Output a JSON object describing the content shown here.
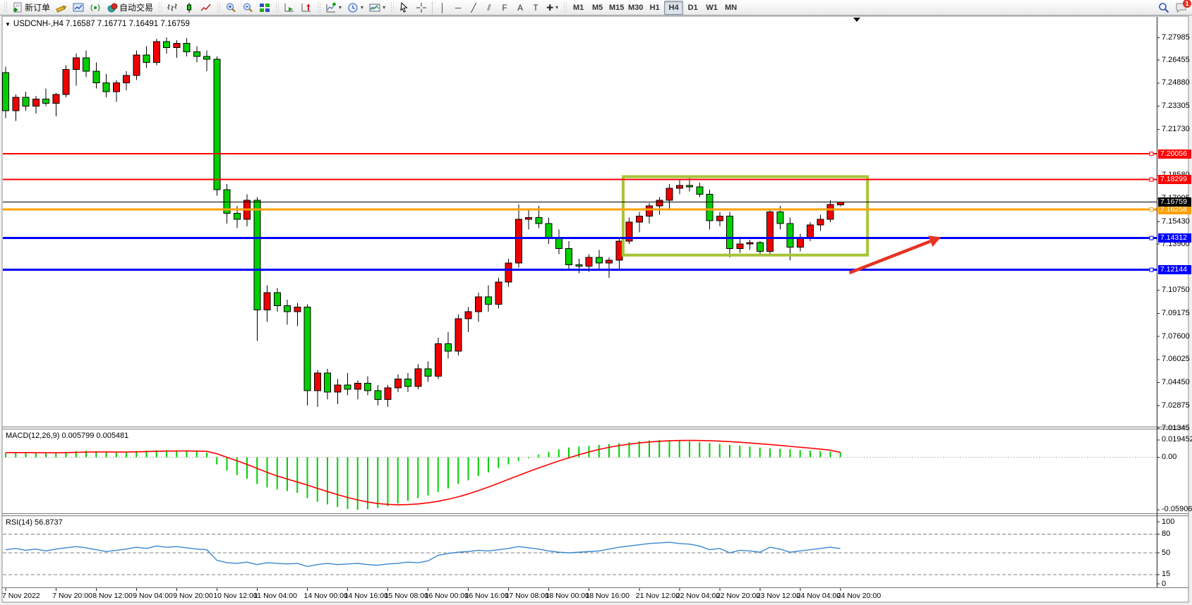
{
  "toolbar": {
    "items": [
      {
        "type": "handle"
      },
      {
        "type": "btn",
        "id": "new-order",
        "icon": "doc-plus",
        "label": "新订单"
      },
      {
        "type": "btn",
        "id": "crayon",
        "icon": "crayon"
      },
      {
        "type": "btn",
        "id": "chart-profiles",
        "icon": "charts"
      },
      {
        "type": "btn",
        "id": "signals",
        "icon": "signal"
      },
      {
        "type": "btn",
        "id": "auto-trading",
        "icon": "autotrade",
        "label": "自动交易"
      },
      {
        "type": "handle"
      },
      {
        "type": "btn",
        "id": "bar-chart",
        "icon": "bars"
      },
      {
        "type": "btn",
        "id": "candlestick-chart",
        "icon": "candle"
      },
      {
        "type": "btn",
        "id": "line-chart",
        "icon": "line"
      },
      {
        "type": "handle"
      },
      {
        "type": "btn",
        "id": "zoom-in",
        "icon": "zoom-in"
      },
      {
        "type": "btn",
        "id": "zoom-out",
        "icon": "zoom-out"
      },
      {
        "type": "btn",
        "id": "tile-windows",
        "icon": "tile"
      },
      {
        "type": "handle"
      },
      {
        "type": "btn",
        "id": "auto-scroll",
        "icon": "autoscroll"
      },
      {
        "type": "btn",
        "id": "chart-shift",
        "icon": "shift"
      },
      {
        "type": "handle"
      },
      {
        "type": "btn",
        "id": "indicators",
        "icon": "ind",
        "dropdown": true
      },
      {
        "type": "btn",
        "id": "periods",
        "icon": "clock",
        "dropdown": true
      },
      {
        "type": "btn",
        "id": "templates",
        "icon": "tpl",
        "dropdown": true
      },
      {
        "type": "handle"
      },
      {
        "type": "btn",
        "id": "cursor",
        "icon": "cursor"
      },
      {
        "type": "btn",
        "id": "crosshair",
        "icon": "cross"
      },
      {
        "type": "sep"
      },
      {
        "type": "btn",
        "id": "vertical-line",
        "glyph": "│"
      },
      {
        "type": "btn",
        "id": "horizontal-line",
        "glyph": "─"
      },
      {
        "type": "btn",
        "id": "trendline",
        "glyph": "╱"
      },
      {
        "type": "btn",
        "id": "equidistant-channel",
        "glyph": "⫽"
      },
      {
        "type": "btn",
        "id": "fibonacci",
        "glyph": "F"
      },
      {
        "type": "btn",
        "id": "text",
        "glyph": "A"
      },
      {
        "type": "btn",
        "id": "text-label",
        "glyph": "T"
      },
      {
        "type": "btn",
        "id": "arrows",
        "glyph": "✚",
        "dropdown": true
      },
      {
        "type": "handle"
      },
      {
        "type": "tf",
        "id": "tf-m1",
        "label": "M1"
      },
      {
        "type": "tf",
        "id": "tf-m5",
        "label": "M5"
      },
      {
        "type": "tf",
        "id": "tf-m15",
        "label": "M15"
      },
      {
        "type": "tf",
        "id": "tf-m30",
        "label": "M30"
      },
      {
        "type": "tf",
        "id": "tf-h1",
        "label": "H1"
      },
      {
        "type": "tf",
        "id": "tf-h4",
        "label": "H4",
        "active": true
      },
      {
        "type": "tf",
        "id": "tf-d1",
        "label": "D1"
      },
      {
        "type": "tf",
        "id": "tf-w1",
        "label": "W1"
      },
      {
        "type": "tf",
        "id": "tf-mn",
        "label": "MN"
      },
      {
        "type": "spacer"
      },
      {
        "type": "btn",
        "id": "search",
        "icon": "search"
      },
      {
        "type": "btn",
        "id": "notifications",
        "icon": "chat",
        "badge": "1"
      }
    ]
  },
  "chart": {
    "symbol": "USDCNH-",
    "period": "H4",
    "title_text": "USDCNH-,H4  7.16587 7.16771 7.16491 7.16759",
    "ohlc": {
      "open": "7.16587",
      "high": "7.16771",
      "low": "7.16491",
      "close": "7.16759"
    }
  },
  "indicators": {
    "macd": {
      "label": "MACD(12,26,9) 0.005799 0.005481",
      "axis_ticks": [
        {
          "text": "0.019452",
          "value": 0.019452
        },
        {
          "text": "0.00",
          "value": 0
        },
        {
          "text": "-0.059068",
          "value": -0.059068
        }
      ]
    },
    "rsi": {
      "label": "RSI(14) 56.8737",
      "axis_ticks": [
        {
          "text": "100",
          "value": 100
        },
        {
          "text": "80",
          "value": 80
        },
        {
          "text": "50",
          "value": 50
        },
        {
          "text": "15",
          "value": 15
        },
        {
          "text": "0",
          "value": 0
        }
      ],
      "dashed_levels": [
        80,
        50,
        15
      ]
    }
  },
  "price_axis": {
    "ticks": [
      {
        "text": "7.27985",
        "price": 7.27985
      },
      {
        "text": "7.26455",
        "price": 7.26455
      },
      {
        "text": "7.24880",
        "price": 7.2488
      },
      {
        "text": "7.23305",
        "price": 7.23305
      },
      {
        "text": "7.21730",
        "price": 7.2173
      },
      {
        "text": "7.18580",
        "price": 7.1858
      },
      {
        "text": "7.17005",
        "price": 7.17005
      },
      {
        "text": "7.15430",
        "price": 7.1543
      },
      {
        "text": "7.13900",
        "price": 7.139
      },
      {
        "text": "7.10750",
        "price": 7.1075
      },
      {
        "text": "7.09175",
        "price": 7.09175
      },
      {
        "text": "7.07600",
        "price": 7.076
      },
      {
        "text": "7.06025",
        "price": 7.06025
      },
      {
        "text": "7.04450",
        "price": 7.0445
      },
      {
        "text": "7.02875",
        "price": 7.02875
      },
      {
        "text": "7.01345",
        "price": 7.01345
      }
    ],
    "line_badges": [
      {
        "text": "7.20056",
        "price": 7.20056,
        "color": "#ff0000"
      },
      {
        "text": "7.18299",
        "price": 7.18299,
        "color": "#ff0000"
      },
      {
        "text": "7.16258",
        "price": 7.16258,
        "color": "#ffa000"
      },
      {
        "text": "7.14312",
        "price": 7.14312,
        "color": "#0000ff"
      },
      {
        "text": "7.12144",
        "price": 7.12144,
        "color": "#0000ff"
      },
      {
        "text": "7.16759",
        "price": 7.16759,
        "color": "#000000"
      }
    ]
  },
  "time_axis": [
    {
      "bar": 0,
      "text": "7 Nov 2022"
    },
    {
      "bar": 5,
      "text": "7 Nov 20:00"
    },
    {
      "bar": 9,
      "text": "8 Nov 12:00"
    },
    {
      "bar": 13,
      "text": "9 Nov 04:00"
    },
    {
      "bar": 17,
      "text": "9 Nov 20:00"
    },
    {
      "bar": 21,
      "text": "10 Nov 12:00"
    },
    {
      "bar": 25,
      "text": "11 Nov 04:00"
    },
    {
      "bar": 30,
      "text": "14 Nov 00:00"
    },
    {
      "bar": 34,
      "text": "14 Nov 16:00"
    },
    {
      "bar": 38,
      "text": "15 Nov 08:00"
    },
    {
      "bar": 42,
      "text": "16 Nov 00:00"
    },
    {
      "bar": 46,
      "text": "16 Nov 16:00"
    },
    {
      "bar": 50,
      "text": "17 Nov 08:00"
    },
    {
      "bar": 54,
      "text": "18 Nov 00:00"
    },
    {
      "bar": 58,
      "text": "18 Nov 16:00"
    },
    {
      "bar": 63,
      "text": "21 Nov 12:00"
    },
    {
      "bar": 67,
      "text": "22 Nov 04:00"
    },
    {
      "bar": 71,
      "text": "22 Nov 20:00"
    },
    {
      "bar": 75,
      "text": "23 Nov 12:00"
    },
    {
      "bar": 79,
      "text": "24 Nov 04:00"
    },
    {
      "bar": 83,
      "text": "24 Nov 20:00"
    }
  ],
  "chart_data": {
    "type": "candlestick",
    "title": "USDCNH- H4",
    "colors": {
      "bull": "#ee0000",
      "bear": "#00cf00",
      "wick": "#000000",
      "macd_hist": "#00cf00",
      "macd_signal": "#ff0000",
      "rsi_line": "#3a87d0",
      "box": "#a7c437",
      "arrow": "#e63323",
      "red_line": "#ff0000",
      "orange_line": "#ffa000",
      "blue_line": "#0000ff",
      "bid_line": "#000000"
    },
    "ylim": [
      7.015,
      7.292
    ],
    "candles": [
      [
        7.256,
        7.26,
        7.225,
        7.23
      ],
      [
        7.23,
        7.241,
        7.223,
        7.239
      ],
      [
        7.239,
        7.243,
        7.23,
        7.233
      ],
      [
        7.233,
        7.24,
        7.228,
        7.238
      ],
      [
        7.238,
        7.245,
        7.233,
        7.235
      ],
      [
        7.235,
        7.242,
        7.226,
        7.241
      ],
      [
        7.241,
        7.261,
        7.239,
        7.258
      ],
      [
        7.258,
        7.269,
        7.247,
        7.266
      ],
      [
        7.266,
        7.271,
        7.253,
        7.257
      ],
      [
        7.257,
        7.263,
        7.245,
        7.249
      ],
      [
        7.249,
        7.255,
        7.239,
        7.243
      ],
      [
        7.243,
        7.251,
        7.236,
        7.249
      ],
      [
        7.249,
        7.257,
        7.244,
        7.254
      ],
      [
        7.254,
        7.271,
        7.251,
        7.268
      ],
      [
        7.268,
        7.274,
        7.259,
        7.263
      ],
      [
        7.263,
        7.279,
        7.261,
        7.277
      ],
      [
        7.277,
        7.2799,
        7.269,
        7.273
      ],
      [
        7.273,
        7.278,
        7.266,
        7.276
      ],
      [
        7.276,
        7.2795,
        7.267,
        7.27
      ],
      [
        7.27,
        7.274,
        7.263,
        7.267
      ],
      [
        7.267,
        7.271,
        7.257,
        7.265
      ],
      [
        7.265,
        7.267,
        7.172,
        7.176
      ],
      [
        7.176,
        7.18,
        7.153,
        7.16
      ],
      [
        7.16,
        7.165,
        7.15,
        7.156
      ],
      [
        7.156,
        7.173,
        7.151,
        7.169
      ],
      [
        7.169,
        7.171,
        7.073,
        7.094
      ],
      [
        7.094,
        7.111,
        7.086,
        7.106
      ],
      [
        7.106,
        7.109,
        7.093,
        7.097
      ],
      [
        7.097,
        7.101,
        7.084,
        7.093
      ],
      [
        7.093,
        7.099,
        7.083,
        7.096
      ],
      [
        7.096,
        7.098,
        7.029,
        7.039
      ],
      [
        7.039,
        7.053,
        7.028,
        7.051
      ],
      [
        7.051,
        7.054,
        7.033,
        7.038
      ],
      [
        7.038,
        7.047,
        7.03,
        7.043
      ],
      [
        7.043,
        7.051,
        7.036,
        7.04
      ],
      [
        7.04,
        7.046,
        7.033,
        7.044
      ],
      [
        7.044,
        7.049,
        7.036,
        7.039
      ],
      [
        7.039,
        7.043,
        7.029,
        7.033
      ],
      [
        7.033,
        7.043,
        7.028,
        7.041
      ],
      [
        7.041,
        7.05,
        7.038,
        7.047
      ],
      [
        7.047,
        7.051,
        7.038,
        7.042
      ],
      [
        7.042,
        7.057,
        7.04,
        7.054
      ],
      [
        7.054,
        7.059,
        7.045,
        7.049
      ],
      [
        7.049,
        7.075,
        7.047,
        7.071
      ],
      [
        7.071,
        7.079,
        7.061,
        7.066
      ],
      [
        7.066,
        7.091,
        7.063,
        7.088
      ],
      [
        7.088,
        7.096,
        7.079,
        7.093
      ],
      [
        7.093,
        7.106,
        7.086,
        7.103
      ],
      [
        7.103,
        7.111,
        7.093,
        7.098
      ],
      [
        7.098,
        7.116,
        7.095,
        7.113
      ],
      [
        7.113,
        7.129,
        7.11,
        7.126
      ],
      [
        7.126,
        7.166,
        7.123,
        7.156
      ],
      [
        7.156,
        7.163,
        7.149,
        7.157
      ],
      [
        7.157,
        7.165,
        7.15,
        7.153
      ],
      [
        7.153,
        7.157,
        7.139,
        7.143
      ],
      [
        7.143,
        7.149,
        7.132,
        7.136
      ],
      [
        7.136,
        7.141,
        7.121,
        7.125
      ],
      [
        7.125,
        7.129,
        7.119,
        7.124
      ],
      [
        7.124,
        7.132,
        7.12,
        7.13
      ],
      [
        7.13,
        7.135,
        7.122,
        7.126
      ],
      [
        7.126,
        7.13,
        7.116,
        7.128
      ],
      [
        7.128,
        7.143,
        7.122,
        7.141
      ],
      [
        7.141,
        7.157,
        7.139,
        7.154
      ],
      [
        7.154,
        7.161,
        7.147,
        7.158
      ],
      [
        7.158,
        7.167,
        7.153,
        7.165
      ],
      [
        7.165,
        7.171,
        7.159,
        7.169
      ],
      [
        7.169,
        7.18,
        7.163,
        7.177
      ],
      [
        7.177,
        7.183,
        7.173,
        7.179
      ],
      [
        7.179,
        7.185,
        7.175,
        7.178
      ],
      [
        7.178,
        7.181,
        7.171,
        7.173
      ],
      [
        7.173,
        7.176,
        7.149,
        7.155
      ],
      [
        7.155,
        7.161,
        7.151,
        7.158
      ],
      [
        7.158,
        7.161,
        7.13,
        7.136
      ],
      [
        7.136,
        7.143,
        7.133,
        7.139
      ],
      [
        7.139,
        7.142,
        7.135,
        7.14
      ],
      [
        7.14,
        7.141,
        7.131,
        7.134
      ],
      [
        7.134,
        7.163,
        7.132,
        7.161
      ],
      [
        7.161,
        7.165,
        7.149,
        7.153
      ],
      [
        7.153,
        7.157,
        7.128,
        7.137
      ],
      [
        7.137,
        7.146,
        7.134,
        7.143
      ],
      [
        7.143,
        7.154,
        7.141,
        7.152
      ],
      [
        7.152,
        7.159,
        7.148,
        7.156
      ],
      [
        7.156,
        7.169,
        7.154,
        7.166
      ],
      [
        7.16587,
        7.16771,
        7.16491,
        7.16759
      ]
    ],
    "macd_hist": [
      0.005,
      0.0058,
      0.0054,
      0.005,
      0.0046,
      0.005,
      0.006,
      0.007,
      0.0074,
      0.0068,
      0.006,
      0.0056,
      0.006,
      0.007,
      0.0076,
      0.008,
      0.008,
      0.0076,
      0.007,
      0.0064,
      0.0052,
      -0.008,
      -0.015,
      -0.02,
      -0.024,
      -0.03,
      -0.034,
      -0.036,
      -0.038,
      -0.04,
      -0.046,
      -0.05,
      -0.053,
      -0.056,
      -0.058,
      -0.059,
      -0.0585,
      -0.057,
      -0.055,
      -0.052,
      -0.049,
      -0.046,
      -0.043,
      -0.039,
      -0.035,
      -0.03,
      -0.026,
      -0.021,
      -0.017,
      -0.012,
      -0.008,
      -0.004,
      -0.001,
      0.003,
      0.006,
      0.009,
      0.011,
      0.012,
      0.013,
      0.014,
      0.015,
      0.016,
      0.017,
      0.018,
      0.019,
      0.0195,
      0.019,
      0.0185,
      0.018,
      0.017,
      0.016,
      0.015,
      0.014,
      0.013,
      0.012,
      0.011,
      0.01,
      0.0095,
      0.009,
      0.008,
      0.0075,
      0.007,
      0.0065,
      0.0058
    ],
    "macd_signal": [
      0.0052,
      0.0053,
      0.0053,
      0.0052,
      0.0051,
      0.0051,
      0.0052,
      0.0055,
      0.0058,
      0.006,
      0.006,
      0.0059,
      0.0059,
      0.0061,
      0.0064,
      0.0067,
      0.007,
      0.0071,
      0.0071,
      0.007,
      0.0067,
      0.004,
      0.0,
      -0.004,
      -0.008,
      -0.0125,
      -0.017,
      -0.021,
      -0.0245,
      -0.0278,
      -0.0312,
      -0.035,
      -0.0385,
      -0.042,
      -0.0452,
      -0.048,
      -0.0503,
      -0.052,
      -0.053,
      -0.0535,
      -0.0532,
      -0.0525,
      -0.0512,
      -0.0495,
      -0.0472,
      -0.0445,
      -0.0412,
      -0.0375,
      -0.0335,
      -0.0292,
      -0.0248,
      -0.0205,
      -0.0162,
      -0.012,
      -0.008,
      -0.0042,
      -0.0006,
      0.0028,
      0.006,
      0.0088,
      0.0112,
      0.0132,
      0.0148,
      0.0161,
      0.0172,
      0.018,
      0.0186,
      0.0189,
      0.019,
      0.0189,
      0.0186,
      0.0182,
      0.0176,
      0.0169,
      0.0161,
      0.0152,
      0.0143,
      0.0133,
      0.0123,
      0.0113,
      0.0103,
      0.0092,
      0.008,
      0.0055
    ],
    "rsi": [
      55,
      57,
      54,
      56,
      53,
      56,
      58,
      60,
      58,
      55,
      52,
      54,
      56,
      59,
      57,
      61,
      59,
      60,
      58,
      56,
      55,
      38,
      34,
      33,
      35,
      31,
      34,
      33,
      32,
      33,
      28,
      31,
      33,
      31,
      32,
      33,
      31,
      30,
      32,
      33,
      35,
      34,
      37,
      46,
      49,
      51,
      52,
      54,
      53,
      55,
      57,
      60,
      58,
      56,
      53,
      51,
      50,
      51,
      52,
      53,
      56,
      59,
      61,
      63,
      65,
      66,
      67,
      65,
      64,
      61,
      55,
      57,
      50,
      54,
      53,
      51,
      59,
      56,
      51,
      53,
      55,
      57,
      59,
      56.87
    ],
    "hlines": [
      {
        "price": 7.20056,
        "color": "#ff0000",
        "width": 2
      },
      {
        "price": 7.18299,
        "color": "#ff0000",
        "width": 2
      },
      {
        "price": 7.16258,
        "color": "#ffa000",
        "width": 3
      },
      {
        "price": 7.14312,
        "color": "#0000ff",
        "width": 3
      },
      {
        "price": 7.12144,
        "color": "#0000ff",
        "width": 3
      },
      {
        "price": 7.16759,
        "color": "#000000",
        "width": 1
      }
    ],
    "box": {
      "bar1": 61.4,
      "bar2": 85.7,
      "price_top": 7.185,
      "price_bottom": 7.1315
    },
    "arrow": {
      "bar1": 83.9,
      "price1": 7.1194,
      "bar2": 93.0,
      "price2": 7.1437
    }
  }
}
